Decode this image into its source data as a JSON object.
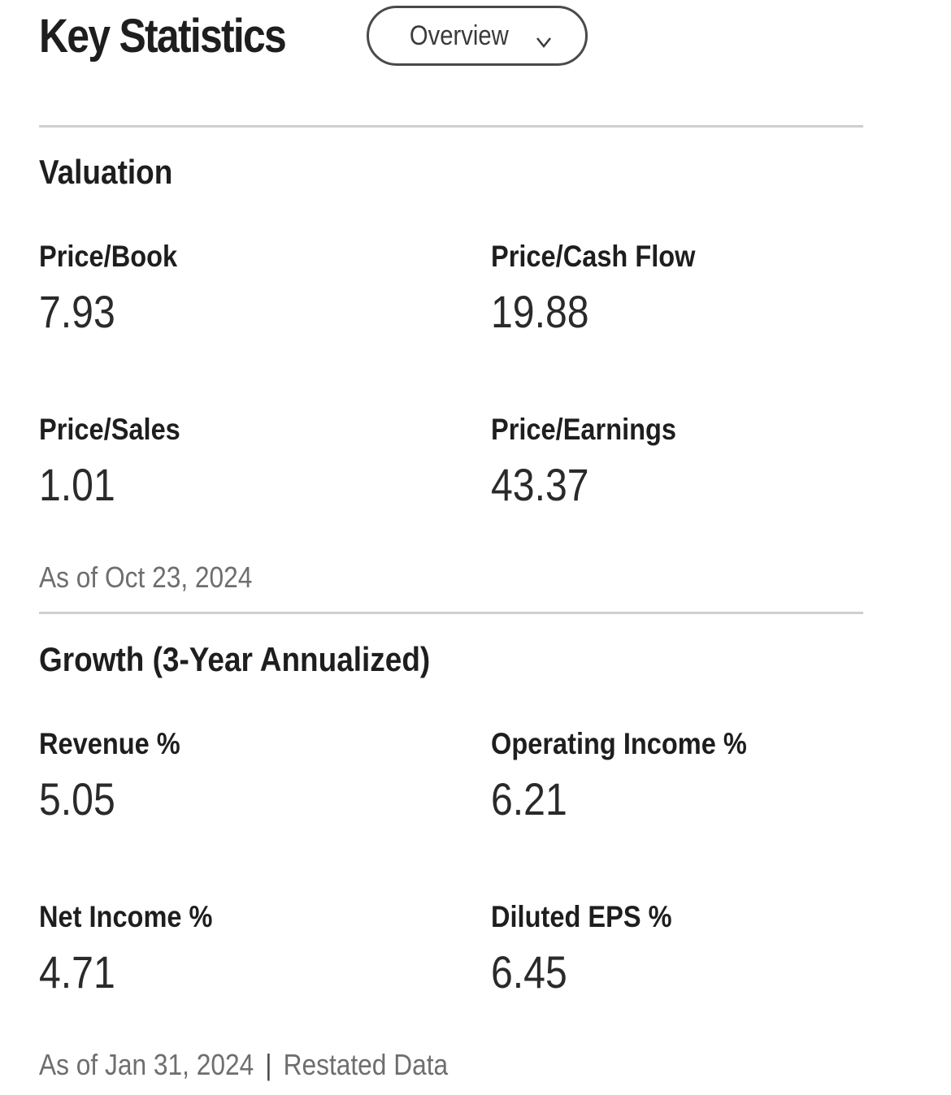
{
  "header": {
    "title": "Key Statistics",
    "view_selector": {
      "selected": "Overview"
    }
  },
  "valuation": {
    "title": "Valuation",
    "stats": [
      {
        "label": "Price/Book",
        "value": "7.93"
      },
      {
        "label": "Price/Cash Flow",
        "value": "19.88"
      },
      {
        "label": "Price/Sales",
        "value": "1.01"
      },
      {
        "label": "Price/Earnings",
        "value": "43.37"
      }
    ],
    "as_of": "As of Oct 23, 2024"
  },
  "growth": {
    "title": "Growth (3-Year Annualized)",
    "stats": [
      {
        "label": "Revenue %",
        "value": "5.05"
      },
      {
        "label": "Operating Income %",
        "value": "6.21"
      },
      {
        "label": "Net Income %",
        "value": "4.71"
      },
      {
        "label": "Diluted EPS %",
        "value": "6.45"
      }
    ],
    "as_of": "As of Jan 31, 2024",
    "separator": "|",
    "note": "Restated Data"
  },
  "icons": {
    "dropdown": "chevron-down-icon"
  }
}
